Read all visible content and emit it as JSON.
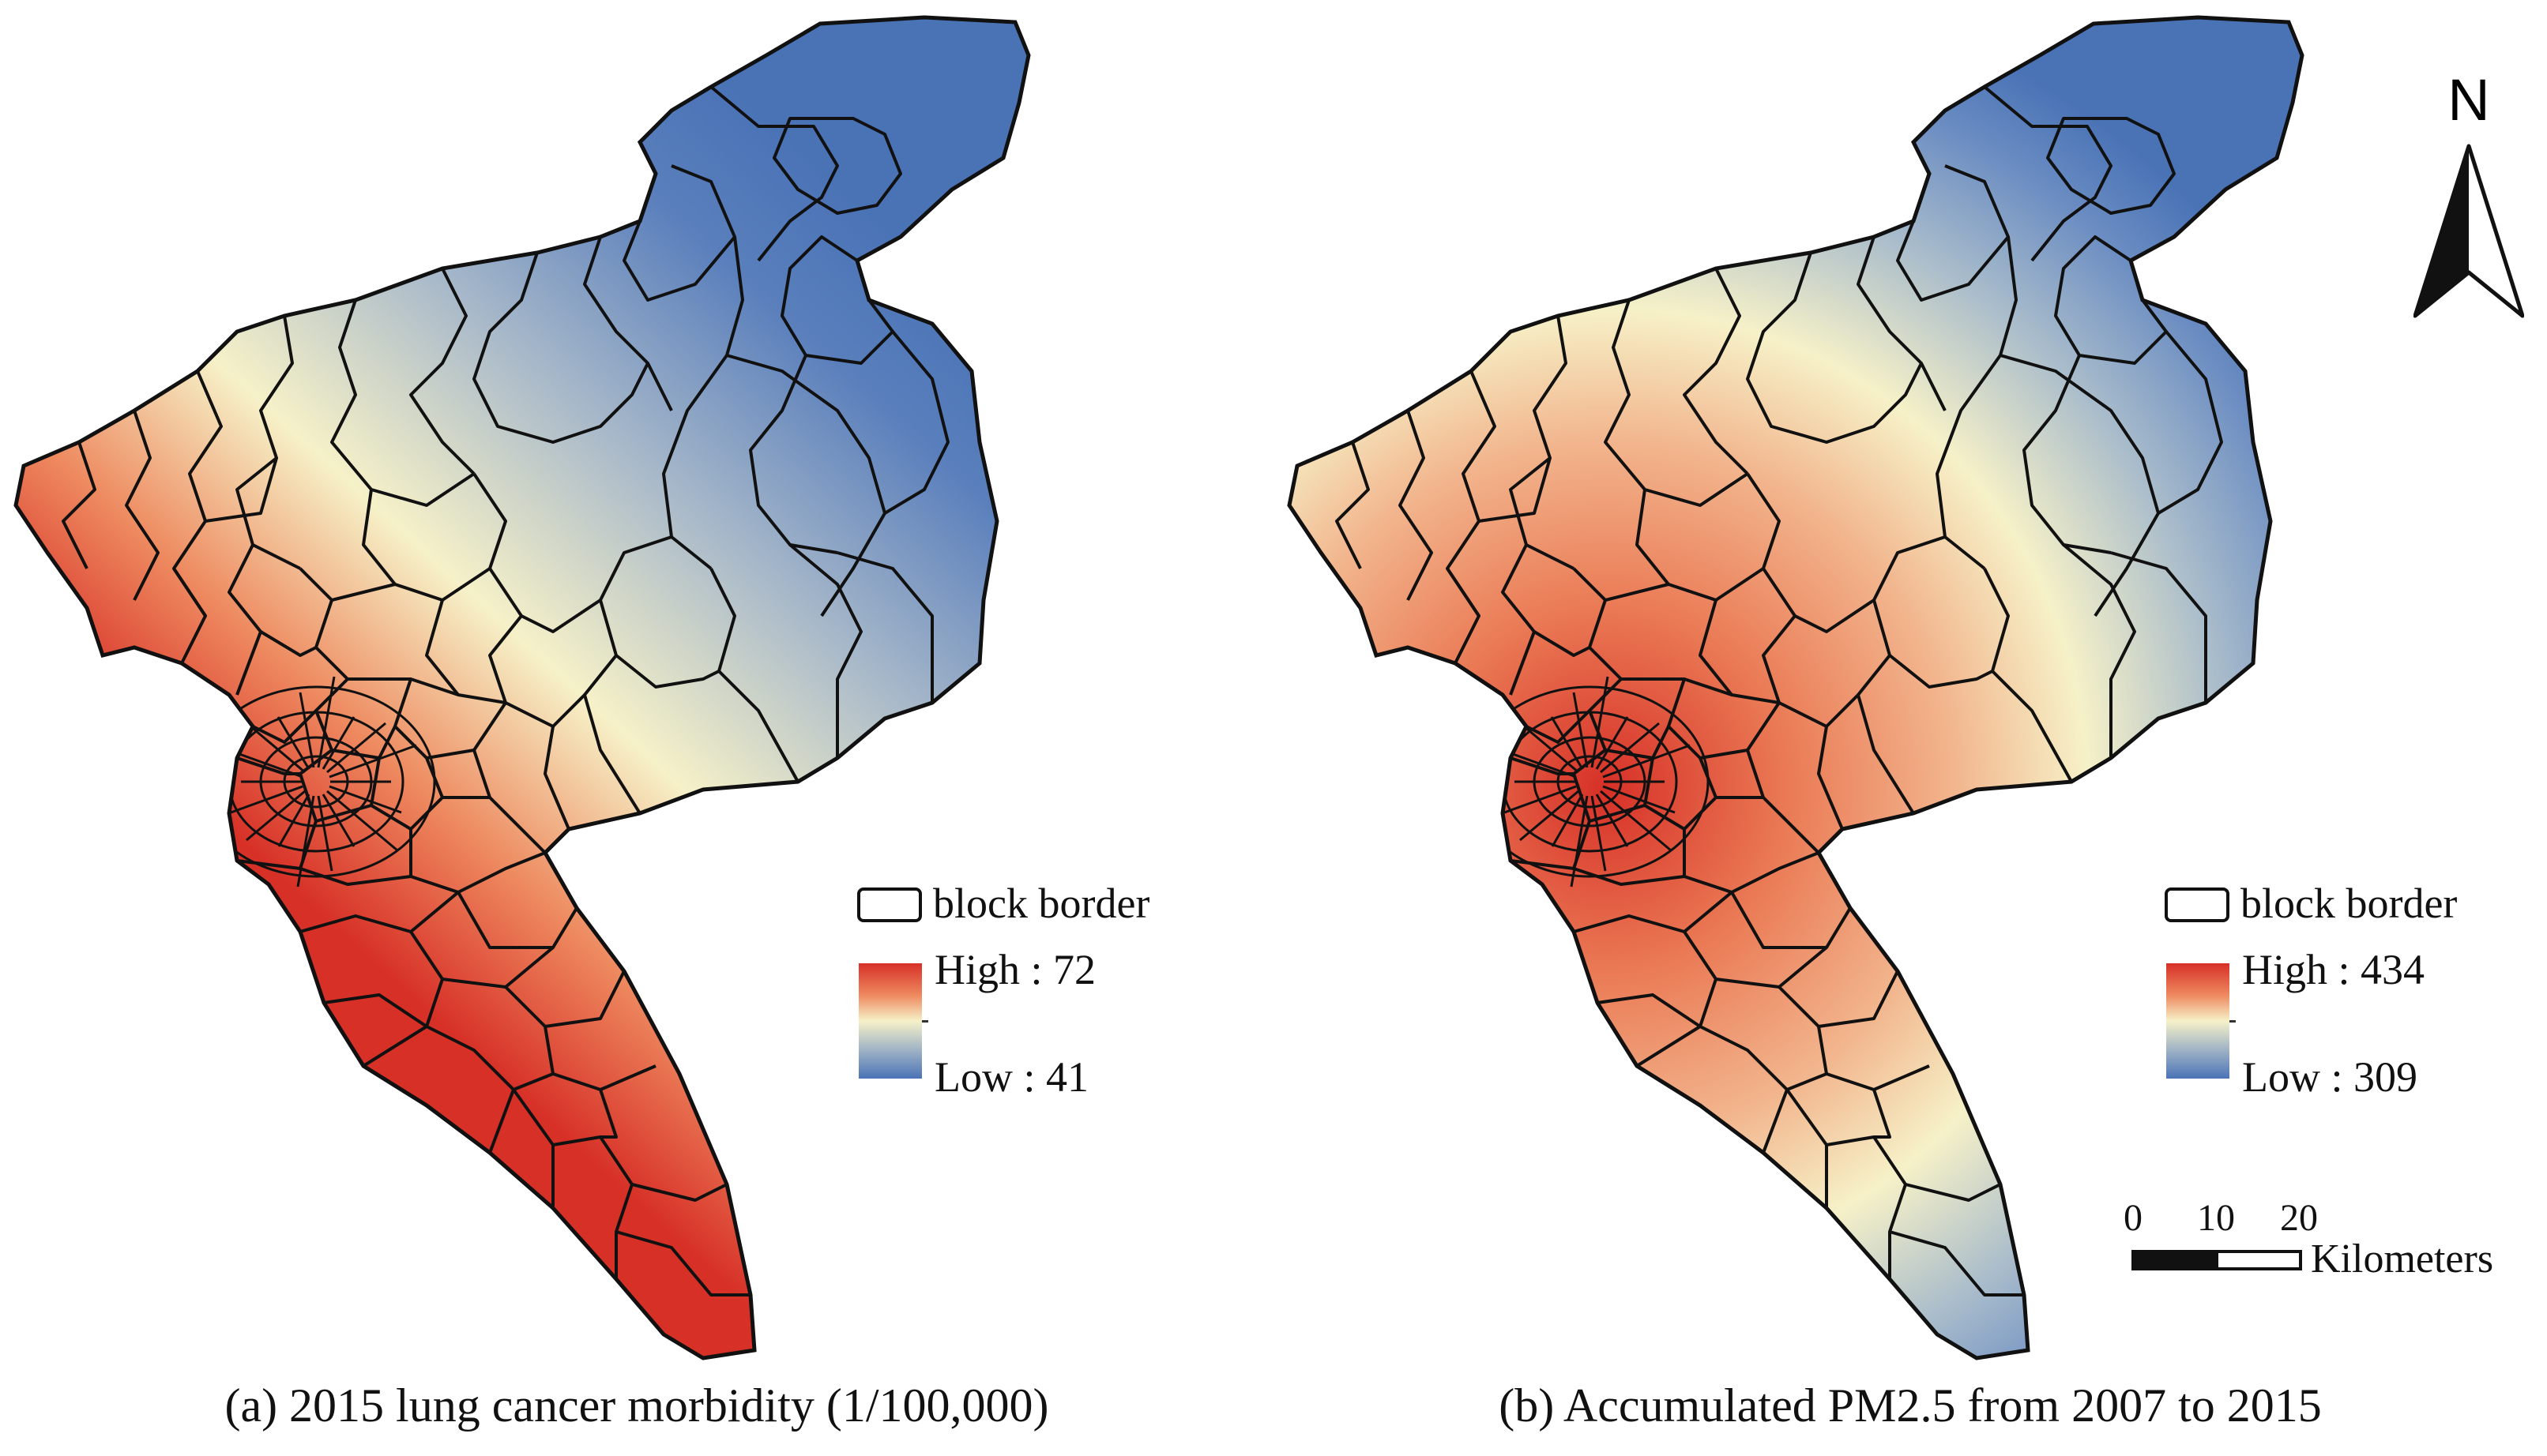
{
  "figure": {
    "panels": [
      {
        "id": "a",
        "caption": "(a) 2015 lung cancer morbidity (1/100,000)",
        "legend": {
          "border_label": "block border",
          "high": "High : 72",
          "low": "Low : 41"
        },
        "palette": {
          "high": "#d73027",
          "mid": "#f6f1c8",
          "low": "#4a73b6"
        },
        "field": "lung cancer morbidity peaks in the south-west urban core and decreases toward the north-east"
      },
      {
        "id": "b",
        "caption": "(b) Accumulated PM2.5 from 2007 to 2015",
        "legend": {
          "border_label": "block border",
          "high": "High : 434",
          "low": "Low : 309"
        },
        "palette": {
          "high": "#d73027",
          "mid": "#f6f1c8",
          "low": "#4a73b6"
        },
        "field": "PM2.5 peaks in the western urban core and decreases toward the north-east"
      }
    ],
    "north_arrow": {
      "label": "N"
    },
    "scale_bar": {
      "ticks": [
        "0",
        "10",
        "20"
      ],
      "units": "Kilometers"
    }
  }
}
